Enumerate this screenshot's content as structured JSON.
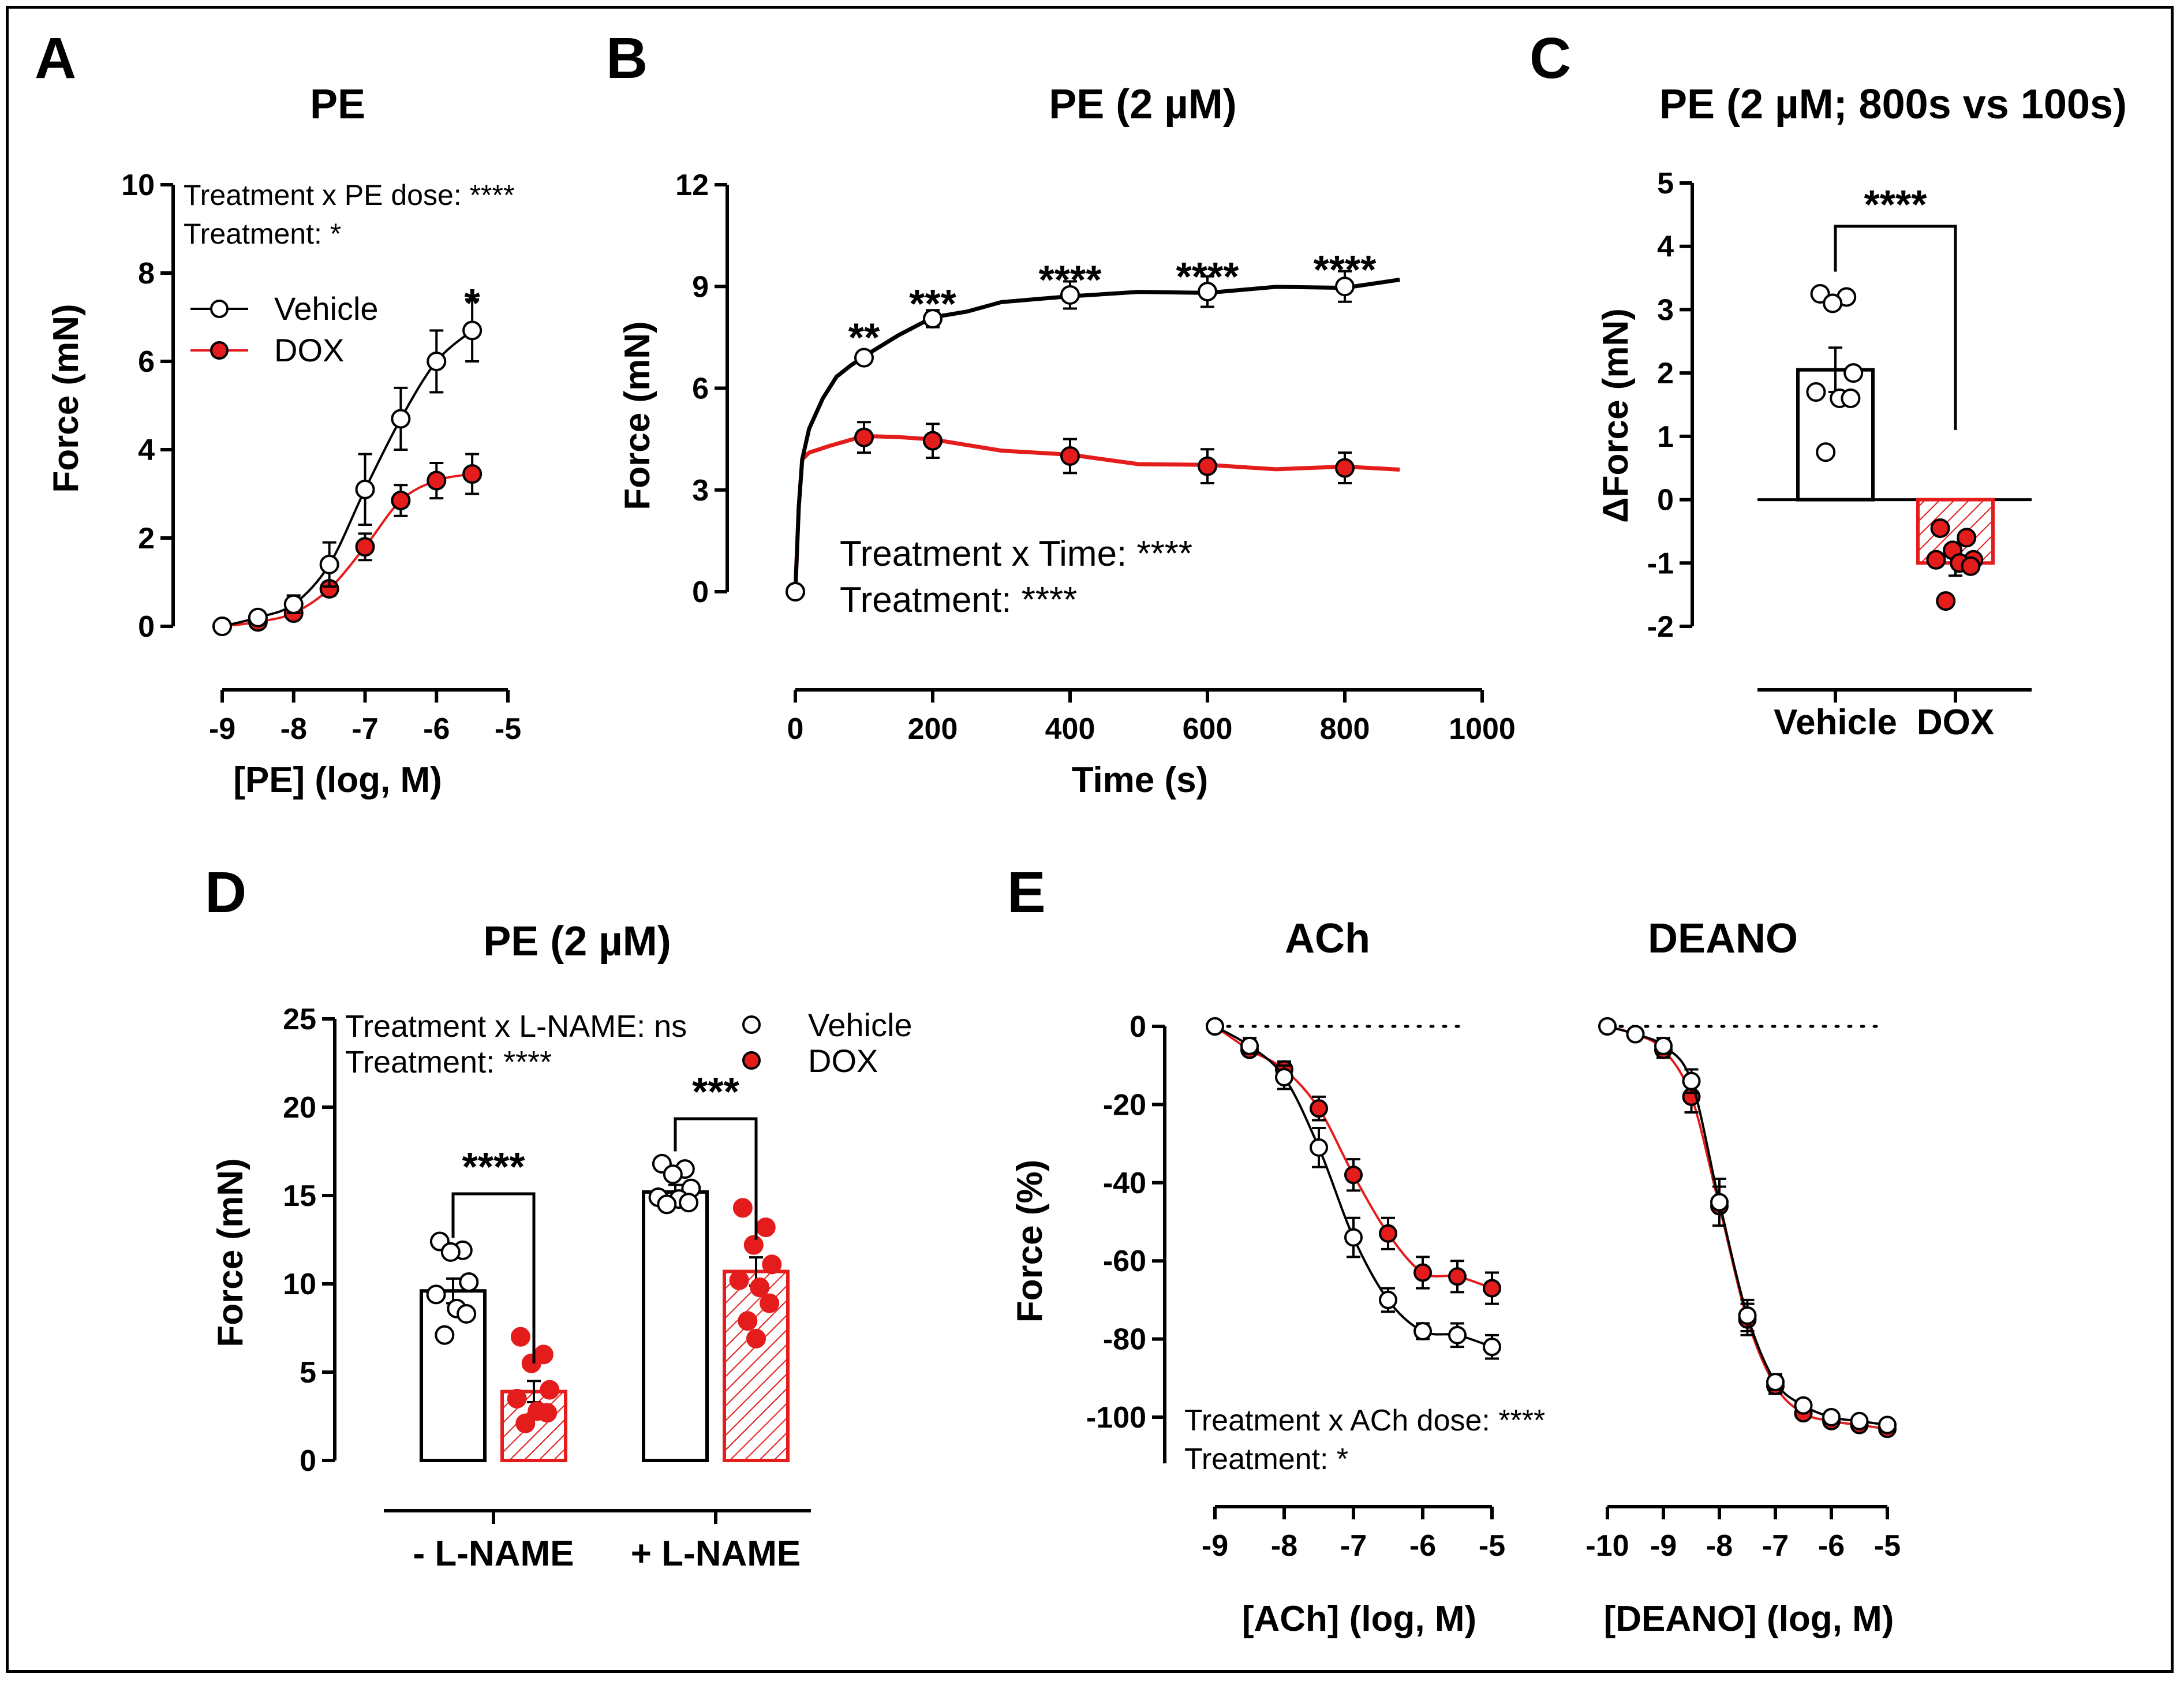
{
  "colors": {
    "vehicle": "#000000",
    "dox": "#e41c1c",
    "vehicle_fill": "#ffffff"
  },
  "legend": {
    "vehicle": "Vehicle",
    "dox": "DOX"
  },
  "chart_data": [
    {
      "id": "A",
      "letter": "A",
      "type": "line",
      "title": "PE",
      "xlabel": "[PE] (log, M)",
      "ylabel": "Force (mN)",
      "xlim": [
        -9,
        -5
      ],
      "ylim": [
        0,
        10
      ],
      "xticks": [
        -9,
        -8,
        -7,
        -6,
        -5
      ],
      "yticks": [
        0,
        2,
        4,
        6,
        8,
        10
      ],
      "annotations": [
        "Treatment x PE dose: ****",
        "Treatment: *"
      ],
      "sig": [
        {
          "x": -5.5,
          "y": 7.4,
          "text": "*"
        }
      ],
      "series": [
        {
          "name": "Vehicle",
          "x": [
            -9,
            -8.5,
            -8,
            -7.5,
            -7,
            -6.5,
            -6,
            -5.5
          ],
          "y": [
            0.0,
            0.2,
            0.5,
            1.4,
            3.1,
            4.7,
            6.0,
            6.7
          ],
          "err": [
            0.05,
            0.1,
            0.2,
            0.5,
            0.8,
            0.7,
            0.7,
            0.7
          ]
        },
        {
          "name": "DOX",
          "x": [
            -9,
            -8.5,
            -8,
            -7.5,
            -7,
            -6.5,
            -6,
            -5.5
          ],
          "y": [
            0.0,
            0.1,
            0.3,
            0.85,
            1.8,
            2.85,
            3.3,
            3.45
          ],
          "err": [
            0.05,
            0.05,
            0.1,
            0.15,
            0.3,
            0.35,
            0.4,
            0.45
          ]
        }
      ]
    },
    {
      "id": "B",
      "letter": "B",
      "type": "line",
      "title": "PE (2 µM)",
      "xlabel": "Time (s)",
      "ylabel": "Force (mN)",
      "xlim": [
        0,
        1000
      ],
      "ylim": [
        0,
        12
      ],
      "xticks": [
        0,
        200,
        400,
        600,
        800,
        1000
      ],
      "yticks": [
        0,
        3,
        6,
        9,
        12
      ],
      "annotations": [
        "Treatment x Time: ****",
        "Treatment: ****"
      ],
      "sig": [
        {
          "x": 100,
          "y": 7.6,
          "text": "**"
        },
        {
          "x": 200,
          "y": 8.6,
          "text": "***"
        },
        {
          "x": 400,
          "y": 9.3,
          "text": "****"
        },
        {
          "x": 600,
          "y": 9.4,
          "text": "****"
        },
        {
          "x": 800,
          "y": 9.6,
          "text": "****"
        }
      ],
      "series": [
        {
          "name": "Vehicle",
          "x": [
            0,
            100,
            200,
            400,
            600,
            800
          ],
          "y": [
            0,
            6.9,
            8.05,
            8.75,
            8.85,
            9.0
          ],
          "err": [
            0,
            0.15,
            0.25,
            0.4,
            0.45,
            0.45
          ],
          "trace_x": [
            0,
            5,
            10,
            20,
            40,
            60,
            80,
            100,
            150,
            200,
            250,
            300,
            400,
            500,
            600,
            700,
            800,
            880
          ],
          "trace_y": [
            0,
            2.5,
            3.9,
            4.8,
            5.7,
            6.3,
            6.7,
            6.9,
            7.6,
            8.05,
            8.3,
            8.5,
            8.75,
            8.8,
            8.85,
            8.95,
            9.0,
            9.2
          ]
        },
        {
          "name": "DOX",
          "x": [
            0,
            100,
            200,
            400,
            600,
            800
          ],
          "y": [
            0,
            4.55,
            4.45,
            4.0,
            3.7,
            3.65
          ],
          "err": [
            0,
            0.45,
            0.5,
            0.5,
            0.5,
            0.45
          ],
          "trace_x": [
            0,
            5,
            10,
            20,
            50,
            100,
            150,
            200,
            300,
            400,
            500,
            600,
            700,
            800,
            880
          ],
          "trace_y": [
            0,
            2.5,
            3.9,
            4.1,
            4.3,
            4.55,
            4.6,
            4.45,
            4.2,
            4.0,
            3.8,
            3.7,
            3.65,
            3.65,
            3.6
          ]
        }
      ]
    },
    {
      "id": "C",
      "letter": "C",
      "type": "bar",
      "title": "PE (2 µM; 800s vs 100s)",
      "xlabel": "",
      "ylabel": "ΔForce (mN)",
      "ylim": [
        -2,
        5
      ],
      "yticks": [
        -2,
        -1,
        0,
        1,
        2,
        3,
        4,
        5
      ],
      "categories": [
        "Vehicle",
        "DOX"
      ],
      "values": [
        2.05,
        -1.0
      ],
      "err": [
        0.35,
        0.2
      ],
      "points": [
        [
          3.25,
          3.2,
          3.1,
          2.0,
          1.7,
          1.6,
          1.6,
          0.75
        ],
        [
          -0.45,
          -0.6,
          -0.8,
          -0.95,
          -0.95,
          -1.0,
          -1.05,
          -1.6
        ]
      ],
      "sig": [
        {
          "text": "****"
        }
      ]
    },
    {
      "id": "D",
      "letter": "D",
      "type": "bar",
      "title": "PE (2 µM)",
      "xlabel": "",
      "ylabel": "Force (mN)",
      "ylim": [
        0,
        25
      ],
      "yticks": [
        0,
        5,
        10,
        15,
        20,
        25
      ],
      "categories": [
        "- L-NAME",
        "+ L-NAME"
      ],
      "annotations": [
        "Treatment x L-NAME: ns",
        "Treatment: ****"
      ],
      "series": [
        {
          "name": "Vehicle",
          "values": [
            9.6,
            15.2
          ],
          "err": [
            0.7,
            0.4
          ],
          "points": [
            [
              12.4,
              11.9,
              11.8,
              10.1,
              9.4,
              8.6,
              8.3,
              7.1
            ],
            [
              16.8,
              16.5,
              16.2,
              15.4,
              14.9,
              14.8,
              14.6,
              14.5
            ]
          ]
        },
        {
          "name": "DOX",
          "values": [
            3.9,
            10.7
          ],
          "err": [
            0.6,
            0.8
          ],
          "points": [
            [
              7.0,
              6.0,
              5.5,
              4.0,
              3.5,
              2.8,
              2.7,
              2.1
            ],
            [
              14.3,
              13.2,
              12.2,
              11.1,
              10.2,
              9.8,
              8.9,
              7.9,
              6.9
            ]
          ]
        }
      ],
      "sig": [
        {
          "group": "- L-NAME",
          "text": "****"
        },
        {
          "group": "+ L-NAME",
          "text": "***"
        }
      ]
    },
    {
      "id": "E1",
      "letter": "E",
      "type": "line",
      "title": "ACh",
      "xlabel": "[ACh] (log, M)",
      "ylabel": "Force (%)",
      "xlim": [
        -9,
        -5
      ],
      "ylim": [
        -100,
        0
      ],
      "xticks": [
        -9,
        -8,
        -7,
        -6,
        -5
      ],
      "yticks": [
        -100,
        -80,
        -60,
        -40,
        -20,
        0
      ],
      "annotations": [
        "Treatment x ACh dose: ****",
        "Treatment: *"
      ],
      "series": [
        {
          "name": "Vehicle",
          "x": [
            -9,
            -8.5,
            -8,
            -7.5,
            -7,
            -6.5,
            -6,
            -5.5,
            -5
          ],
          "y": [
            0,
            -5,
            -13,
            -31,
            -54,
            -70,
            -78,
            -79,
            -82
          ],
          "err": [
            0,
            2,
            3,
            5,
            5,
            3,
            2,
            3,
            3
          ]
        },
        {
          "name": "DOX",
          "x": [
            -9,
            -8.5,
            -8,
            -7.5,
            -7,
            -6.5,
            -6,
            -5.5,
            -5
          ],
          "y": [
            0,
            -6,
            -11,
            -21,
            -38,
            -53,
            -63,
            -64,
            -67
          ],
          "err": [
            0,
            1,
            2,
            3,
            4,
            4,
            4,
            4,
            4
          ]
        }
      ]
    },
    {
      "id": "E2",
      "letter": "",
      "type": "line",
      "title": "DEANO",
      "xlabel": "[DEANO] (log, M)",
      "ylabel": "",
      "xlim": [
        -10,
        -5
      ],
      "ylim": [
        -100,
        0
      ],
      "xticks": [
        -10,
        -9,
        -8,
        -7,
        -6,
        -5
      ],
      "yticks": [],
      "series": [
        {
          "name": "Vehicle",
          "x": [
            -10,
            -9.5,
            -9,
            -8.5,
            -8,
            -7.5,
            -7,
            -6.5,
            -6,
            -5.5,
            -5
          ],
          "y": [
            0,
            -2,
            -5,
            -14,
            -45,
            -74,
            -91,
            -97,
            -100,
            -101,
            -102
          ],
          "err": [
            0,
            1,
            2,
            3,
            6,
            4,
            2,
            1,
            1,
            1,
            1
          ]
        },
        {
          "name": "DOX",
          "x": [
            -10,
            -9.5,
            -9,
            -8.5,
            -8,
            -7.5,
            -7,
            -6.5,
            -6,
            -5.5,
            -5
          ],
          "y": [
            0,
            -2,
            -6,
            -18,
            -46,
            -75,
            -92,
            -99,
            -101,
            -102,
            -103
          ],
          "err": [
            0,
            1,
            2,
            4,
            5,
            4,
            2,
            1,
            1,
            1,
            1
          ]
        }
      ]
    }
  ]
}
